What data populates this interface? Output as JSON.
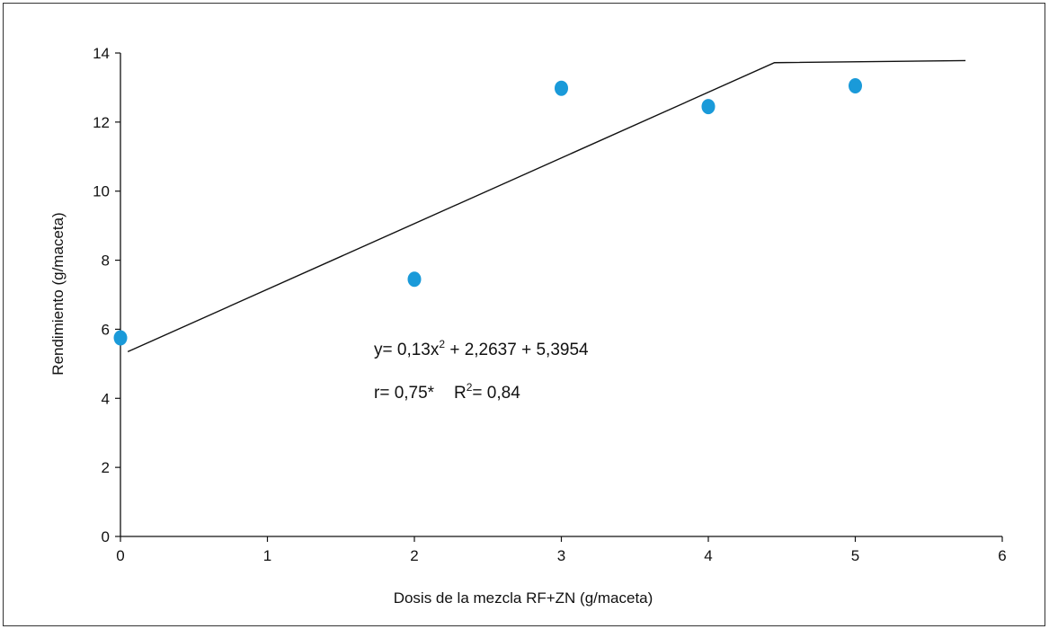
{
  "chart_data": {
    "type": "scatter",
    "xlabel": "Dosis de la mezcla RF+ZN (g/maceta)",
    "ylabel": "Rendimiento (g/maceta)",
    "xlim": [
      0,
      6
    ],
    "ylim": [
      0,
      14
    ],
    "x_ticks": [
      "0",
      "1",
      "2",
      "3",
      "4",
      "5",
      "6"
    ],
    "y_ticks": [
      "0",
      "2",
      "4",
      "6",
      "8",
      "10",
      "12",
      "14"
    ],
    "grid": false,
    "marker_color": "#1a9ad9",
    "line_color": "#111111",
    "points": [
      {
        "x": 0,
        "y": 5.75
      },
      {
        "x": 2,
        "y": 7.45
      },
      {
        "x": 3,
        "y": 12.98
      },
      {
        "x": 4,
        "y": 12.45
      },
      {
        "x": 5,
        "y": 13.05
      }
    ],
    "fit_line": [
      {
        "x": 0.05,
        "y": 5.35
      },
      {
        "x": 4.45,
        "y": 13.72
      },
      {
        "x": 5.75,
        "y": 13.78
      }
    ],
    "annotations": {
      "equation_main": "y= 0,13x",
      "equation_sup": "2",
      "equation_rest": " + 2,2637 + 5,3954",
      "r_text": "r= 0,75*",
      "R_label": "R",
      "R_sup": "2",
      "R_value": "= 0,84"
    }
  }
}
